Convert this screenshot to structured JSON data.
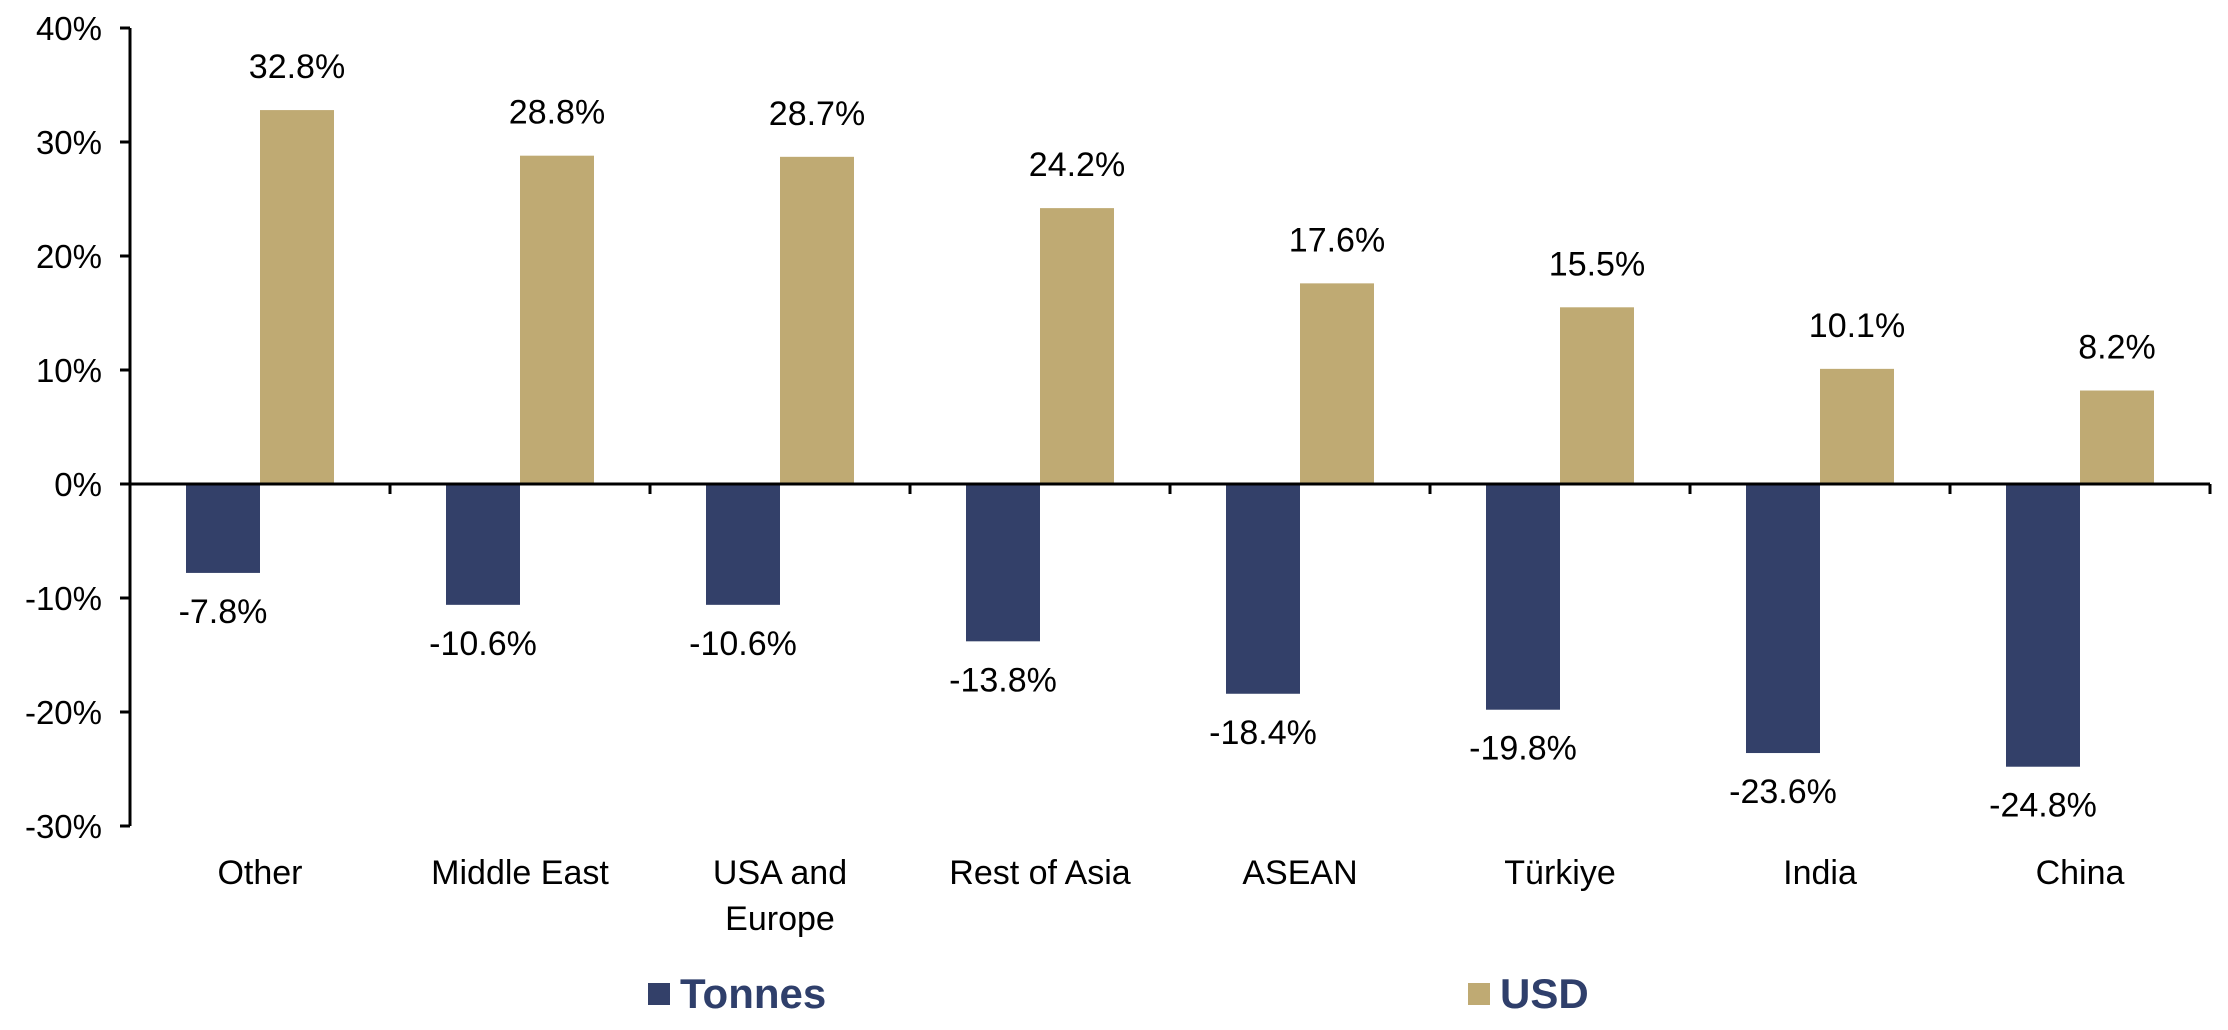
{
  "chart_data": {
    "type": "bar",
    "title": "",
    "xlabel": "",
    "ylabel": "",
    "ylim": [
      -30,
      40
    ],
    "yticks": [
      "40%",
      "30%",
      "20%",
      "10%",
      "0%",
      "-10%",
      "-20%",
      "-30%"
    ],
    "ytick_values": [
      40,
      30,
      20,
      10,
      0,
      -10,
      -20,
      -30
    ],
    "categories": [
      [
        "Other"
      ],
      [
        "Middle East"
      ],
      [
        "USA and",
        "Europe"
      ],
      [
        "Rest of Asia"
      ],
      [
        "ASEAN"
      ],
      [
        "Türkiye"
      ],
      [
        "India"
      ],
      [
        "China"
      ]
    ],
    "series": [
      {
        "name": "Tonnes",
        "color": "#334069",
        "values": [
          -7.8,
          -10.6,
          -10.6,
          -13.8,
          -18.4,
          -19.8,
          -23.6,
          -24.8
        ],
        "labels": [
          "-7.8%",
          "-10.6%",
          "-10.6%",
          "-13.8%",
          "-18.4%",
          "-19.8%",
          "-23.6%",
          "-24.8%"
        ]
      },
      {
        "name": "USD",
        "color": "#bfaa73",
        "values": [
          32.8,
          28.8,
          28.7,
          24.2,
          17.6,
          15.5,
          10.1,
          8.2
        ],
        "labels": [
          "32.8%",
          "28.8%",
          "28.7%",
          "24.2%",
          "17.6%",
          "15.5%",
          "10.1%",
          "8.2%"
        ]
      }
    ],
    "grid": false,
    "legend_position": "bottom"
  },
  "legend": {
    "tonnes_label": "Tonnes",
    "usd_label": "USD"
  }
}
